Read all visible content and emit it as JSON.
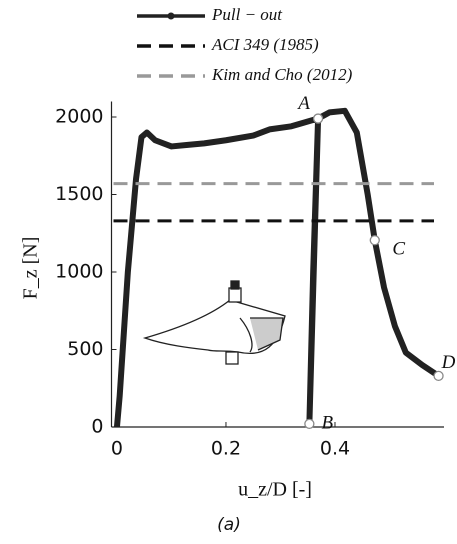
{
  "chart_data": {
    "type": "line",
    "caption": "(a)",
    "x_label": "u_z/D [-]",
    "y_label": "F_z [N]",
    "xlim": [
      -0.01,
      0.6
    ],
    "ylim": [
      0,
      2100
    ],
    "xticks": [
      0,
      0.2,
      0.4
    ],
    "yticks": [
      0,
      500,
      1000,
      1500,
      2000
    ],
    "series": [
      {
        "name": "Pull − out",
        "color": "#222222",
        "dash": "solid",
        "x": [
          0,
          0.005,
          0.02,
          0.035,
          0.045,
          0.055,
          0.07,
          0.1,
          0.13,
          0.16,
          0.2,
          0.25,
          0.28,
          0.32,
          0.369,
          0.353,
          0.36,
          0.369,
          0.39,
          0.418,
          0.44,
          0.46,
          0.473,
          0.49,
          0.51,
          0.53,
          0.56,
          0.59
        ],
        "values": [
          0,
          200,
          1000,
          1600,
          1870,
          1900,
          1850,
          1810,
          1820,
          1830,
          1850,
          1880,
          1920,
          1940,
          1990,
          20,
          1000,
          1990,
          2030,
          2040,
          1900,
          1500,
          1205,
          900,
          650,
          480,
          400,
          330
        ]
      },
      {
        "name": "ACI 349 (1985)",
        "color": "#111111",
        "dash": "dashed",
        "level": 1330
      },
      {
        "name": "Kim and Cho (2012)",
        "color": "#999999",
        "dash": "dashed",
        "level": 1570
      }
    ],
    "annotations": [
      {
        "label": "A",
        "x": 0.369,
        "y": 1990
      },
      {
        "label": "B",
        "x": 0.353,
        "y": 20
      },
      {
        "label": "C",
        "x": 0.473,
        "y": 1205
      },
      {
        "label": "D",
        "x": 0.59,
        "y": 330
      }
    ]
  }
}
